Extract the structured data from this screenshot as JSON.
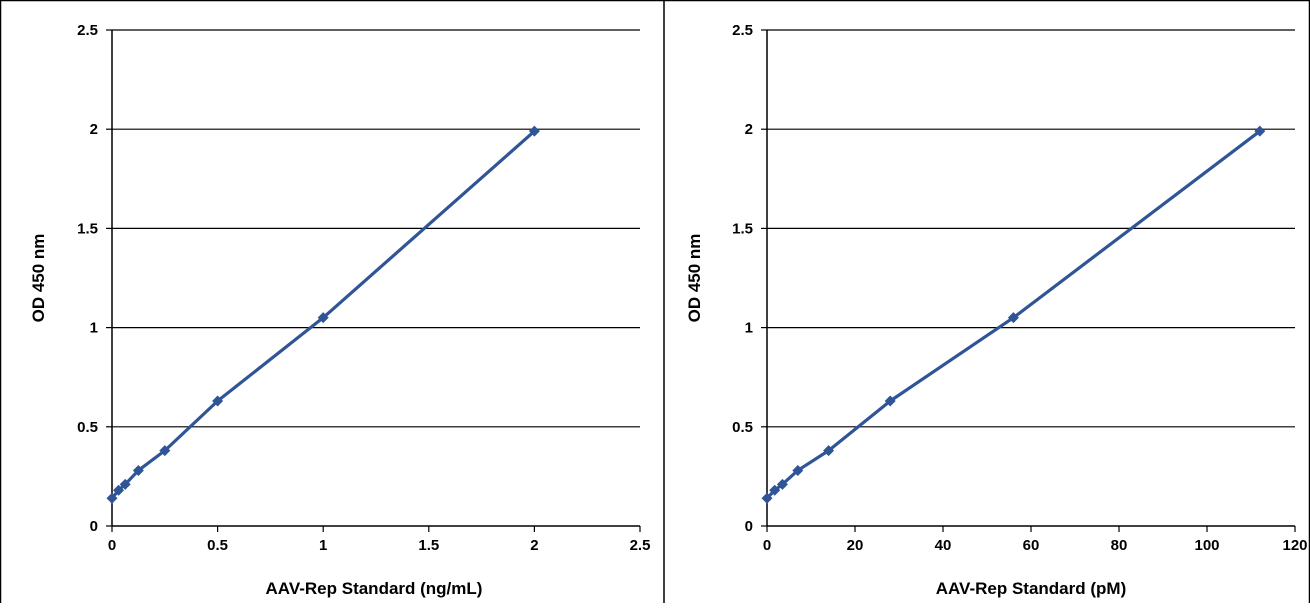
{
  "chart_data": [
    {
      "type": "line",
      "xlabel": "AAV-Rep Standard (ng/mL)",
      "ylabel": "OD 450 nm",
      "xlim": [
        0,
        2.5
      ],
      "ylim": [
        0,
        2.5
      ],
      "xticks": [
        "0",
        "0.5",
        "1",
        "1.5",
        "2",
        "2.5"
      ],
      "yticks": [
        "0",
        "0.5",
        "1",
        "1.5",
        "2",
        "2.5"
      ],
      "grid": "horizontal",
      "legend": "none",
      "series": [
        {
          "color": "#2f5597",
          "marker": "diamond",
          "x": [
            0,
            0.031,
            0.0625,
            0.125,
            0.25,
            0.5,
            1,
            2
          ],
          "y": [
            0.14,
            0.18,
            0.21,
            0.28,
            0.38,
            0.63,
            1.05,
            1.99
          ]
        }
      ]
    },
    {
      "type": "line",
      "xlabel": "AAV-Rep Standard (pM)",
      "ylabel": "OD 450 nm",
      "xlim": [
        0,
        120
      ],
      "ylim": [
        0,
        2.5
      ],
      "xticks": [
        "0",
        "20",
        "40",
        "60",
        "80",
        "100",
        "120"
      ],
      "yticks": [
        "0",
        "0.5",
        "1",
        "1.5",
        "2",
        "2.5"
      ],
      "grid": "horizontal",
      "legend": "none",
      "series": [
        {
          "color": "#2f5597",
          "marker": "diamond",
          "x": [
            0,
            1.75,
            3.5,
            7,
            14,
            28,
            56,
            112
          ],
          "y": [
            0.14,
            0.18,
            0.21,
            0.28,
            0.38,
            0.63,
            1.05,
            1.99
          ]
        }
      ]
    }
  ]
}
